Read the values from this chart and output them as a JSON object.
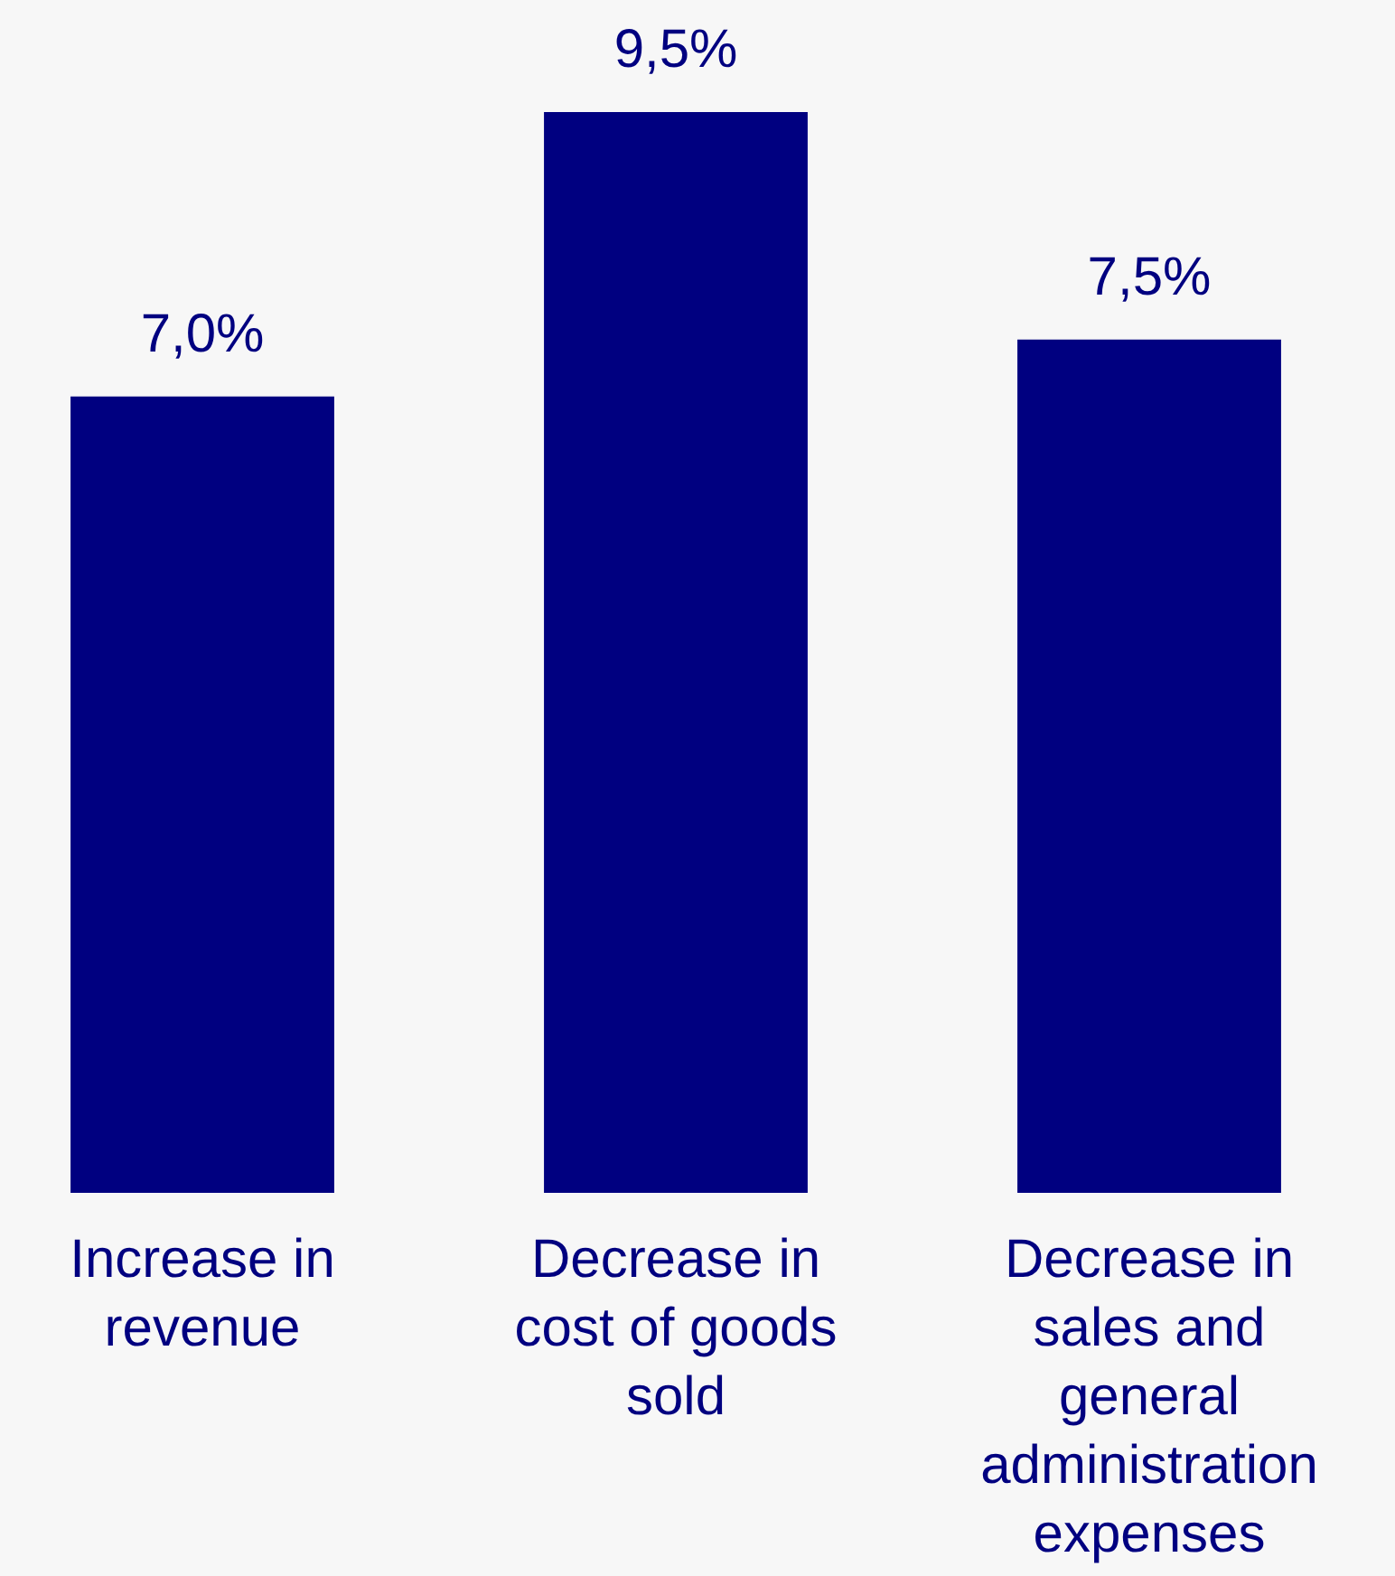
{
  "chart_data": {
    "type": "bar",
    "categories": [
      "Increase in revenue",
      "Decrease in cost of goods sold",
      "Decrease in sales and general administration expenses"
    ],
    "values": [
      7.0,
      9.5,
      7.5
    ],
    "color": "#000080",
    "value_labels": [
      "7,0%",
      "9,5%",
      "7,5%"
    ]
  }
}
